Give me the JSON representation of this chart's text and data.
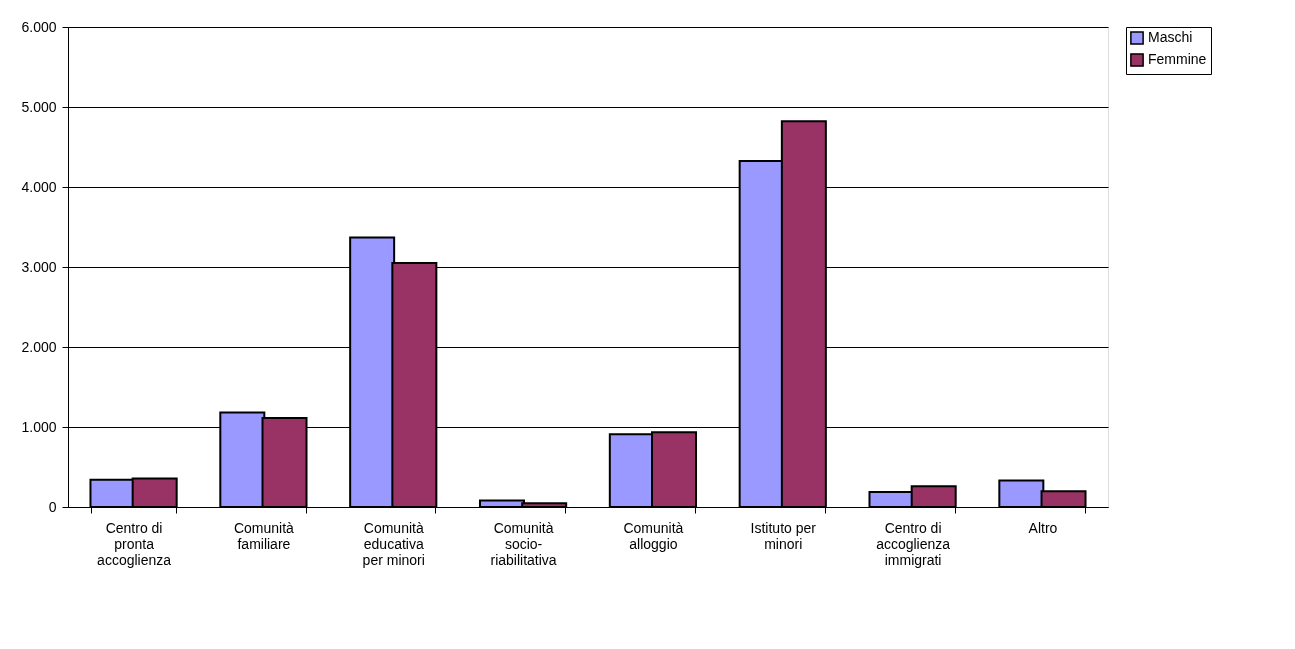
{
  "chart_data": {
    "type": "bar",
    "categories": [
      "Centro di pronta accoglienza",
      "Comunità familiare",
      "Comunità educativa per minori",
      "Comunità socio-riabilitativa",
      "Comunità alloggio",
      "Istituto per minori",
      "Centro di accoglienza immigrati",
      "Altro"
    ],
    "series": [
      {
        "name": "Maschi",
        "color": "#9999ff",
        "values": [
          340,
          1180,
          3370,
          81,
          908,
          4324,
          189,
          332
        ]
      },
      {
        "name": "Femmine",
        "color": "#993366",
        "values": [
          357,
          1113,
          3049,
          46,
          933,
          4823,
          260,
          197
        ]
      }
    ],
    "ylim": [
      0,
      6000
    ],
    "yticks": [
      {
        "value": 0,
        "label": "0"
      },
      {
        "value": 1000,
        "label": "1.000"
      },
      {
        "value": 2000,
        "label": "2.000"
      },
      {
        "value": 3000,
        "label": "3.000"
      },
      {
        "value": 4000,
        "label": "4.000"
      },
      {
        "value": 5000,
        "label": "5.000"
      },
      {
        "value": 6000,
        "label": "6.000"
      }
    ],
    "grid": "y",
    "legend": "right"
  }
}
